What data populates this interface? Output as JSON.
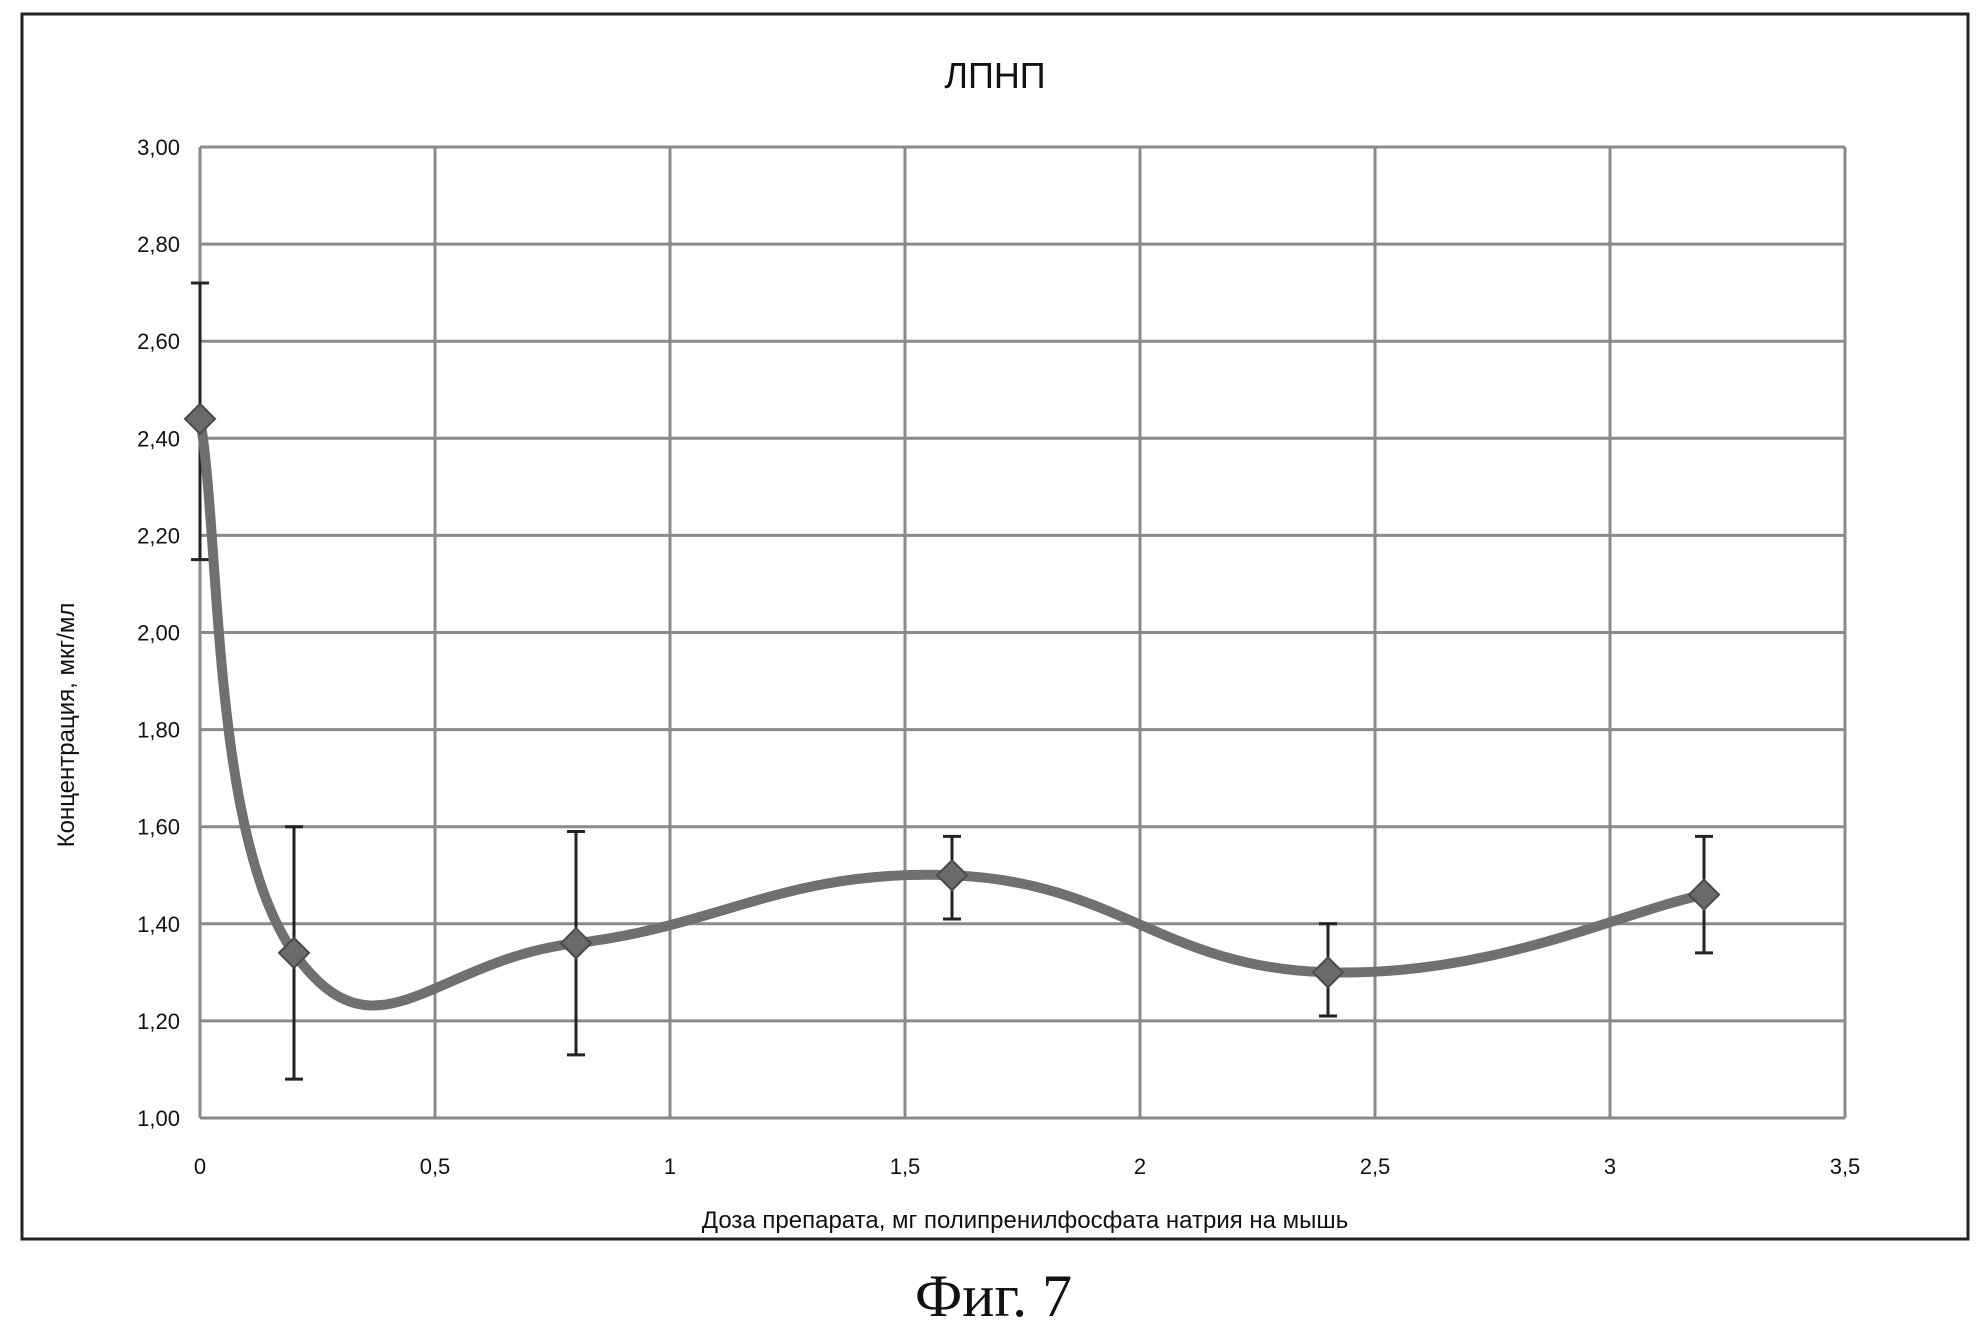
{
  "figure_caption": "Фиг. 7",
  "chart_data": {
    "type": "line",
    "title": "ЛПНП",
    "xlabel": "Доза препарата, мг полипренилфосфата натрия на мышь",
    "ylabel": "Концентрация, мкг/мл",
    "xlim": [
      0,
      3.5
    ],
    "ylim": [
      1.0,
      3.0
    ],
    "x_ticks": [
      0,
      0.5,
      1,
      1.5,
      2,
      2.5,
      3,
      3.5
    ],
    "x_tick_labels": [
      "0",
      "0,5",
      "1",
      "1,5",
      "2",
      "2,5",
      "3",
      "3,5"
    ],
    "y_ticks": [
      1.0,
      1.2,
      1.4,
      1.6,
      1.8,
      2.0,
      2.2,
      2.4,
      2.6,
      2.8,
      3.0
    ],
    "y_tick_labels": [
      "1,00",
      "1,20",
      "1,40",
      "1,60",
      "1,80",
      "2,00",
      "2,20",
      "2,40",
      "2,60",
      "2,80",
      "3,00"
    ],
    "grid": true,
    "smooth": true,
    "marker": "diamond",
    "line_color": "#707070",
    "marker_color": "#6a6a6a",
    "series": [
      {
        "x": [
          0,
          0.2,
          0.8,
          1.6,
          2.4,
          3.2
        ],
        "y": [
          2.44,
          1.34,
          1.36,
          1.5,
          1.3,
          1.46
        ],
        "err_low": [
          2.15,
          1.08,
          1.13,
          1.41,
          1.21,
          1.34
        ],
        "err_high": [
          2.72,
          1.6,
          1.59,
          1.58,
          1.4,
          1.58
        ]
      }
    ]
  }
}
